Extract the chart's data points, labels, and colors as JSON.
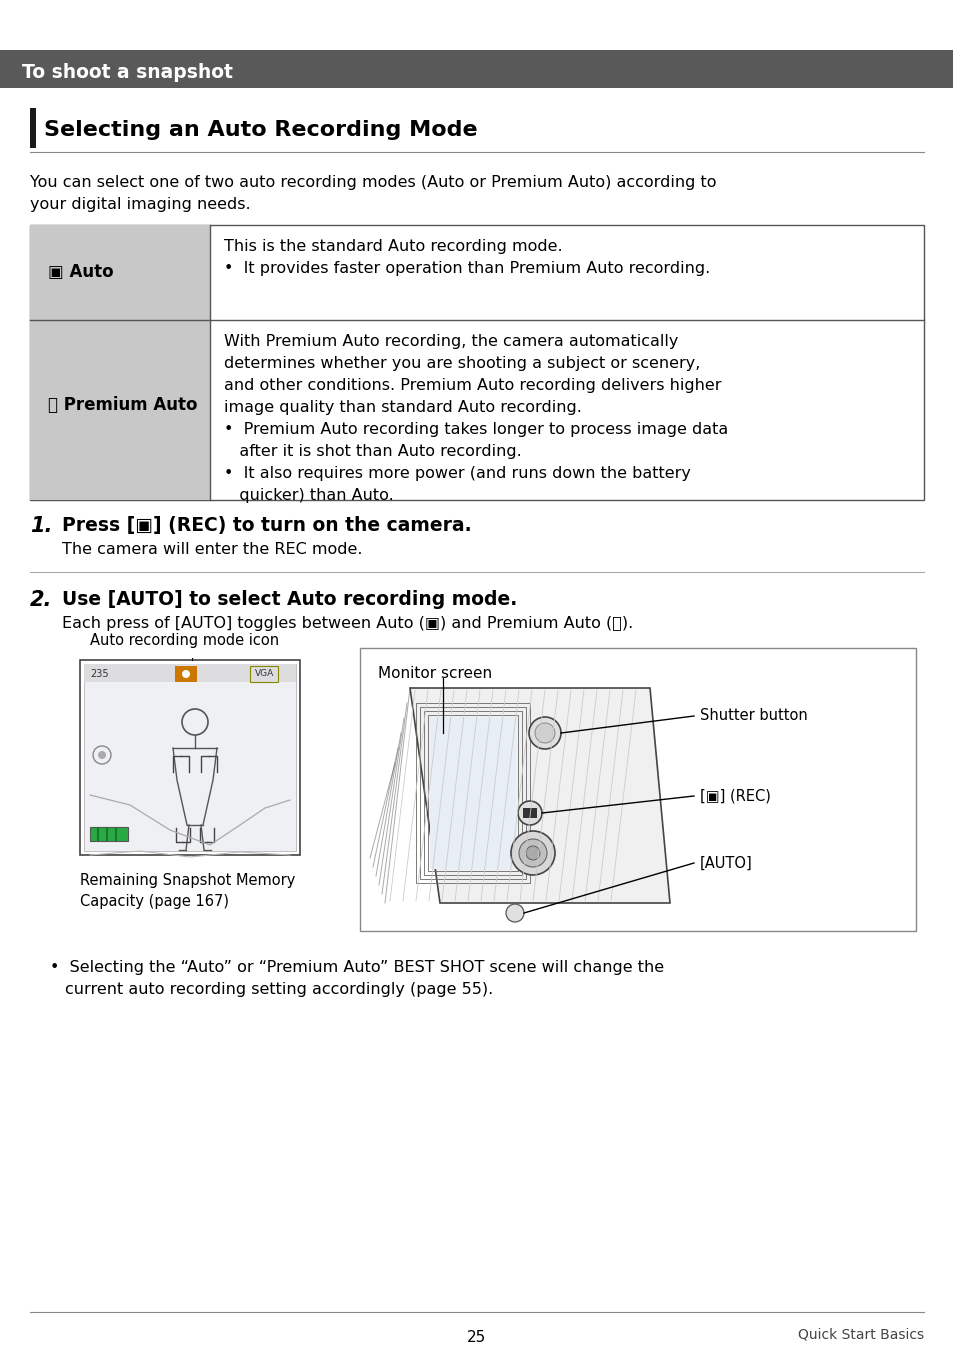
{
  "bg_color": "#ffffff",
  "header_bg": "#595959",
  "header_text": "To shoot a snapshot",
  "header_text_color": "#ffffff",
  "section_bar_color": "#404040",
  "section_title": "Selecting an Auto Recording Mode",
  "intro_text": "You can select one of two auto recording modes (Auto or Premium Auto) according to\nyour digital imaging needs.",
  "table_row1_label": "▣ Auto",
  "table_row1_text_line1": "This is the standard Auto recording mode.",
  "table_row1_text_line2": "•  It provides faster operation than Premium Auto recording.",
  "table_row2_label_line1": "Ⓠ Premium Auto",
  "table_row2_text": "With Premium Auto recording, the camera automatically\ndetermines whether you are shooting a subject or scenery,\nand other conditions. Premium Auto recording delivers higher\nimage quality than standard Auto recording.\n•  Premium Auto recording takes longer to process image data\n   after it is shot than Auto recording.\n•  It also requires more power (and runs down the battery\n   quicker) than Auto.",
  "step1_num": "1.",
  "step1_bold": "Press [▣] (REC) to turn on the camera.",
  "step1_sub": "The camera will enter the REC mode.",
  "step2_num": "2.",
  "step2_bold": "Use [AUTO] to select Auto recording mode.",
  "step2_sub": "Each press of [AUTO] toggles between Auto (▣) and Premium Auto (Ⓠ).",
  "label_icon": "Auto recording mode icon",
  "label_monitor": "Monitor screen",
  "label_shutter": "Shutter button",
  "label_rec": "[▣] (REC)",
  "label_auto": "[AUTO]",
  "label_remaining": "Remaining Snapshot Memory\nCapacity (page 167)",
  "note_text": "•  Selecting the “Auto” or “Premium Auto” BEST SHOT scene will change the\n   current auto recording setting accordingly (page 55).",
  "footer_page": "25",
  "footer_right": "Quick Start Basics"
}
